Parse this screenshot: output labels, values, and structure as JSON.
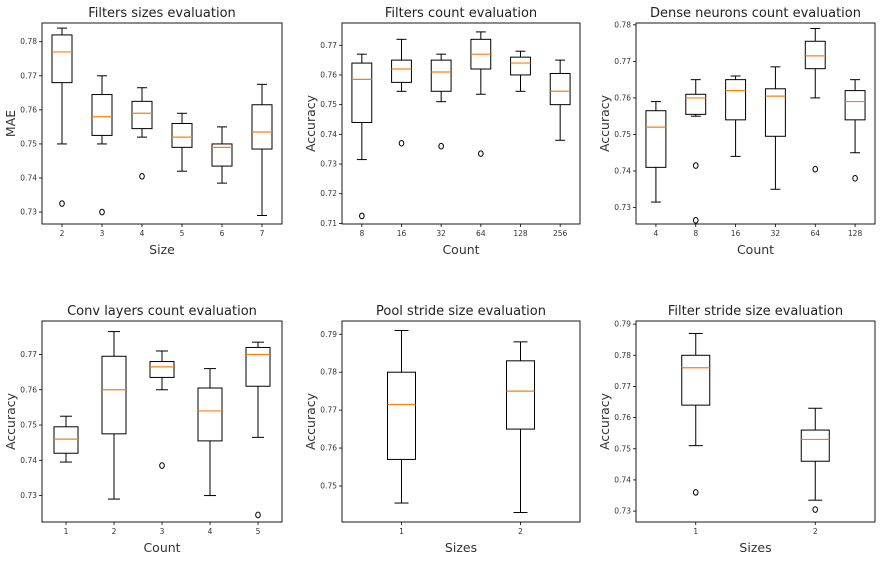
{
  "chart_data": [
    {
      "type": "box",
      "title": "Filters sizes evaluation",
      "xlabel": "Size",
      "ylabel": "MAE",
      "categories": [
        "2",
        "3",
        "4",
        "5",
        "6",
        "7"
      ],
      "ylim": [
        0.7265,
        0.7855
      ],
      "yticks": [
        0.73,
        0.74,
        0.75,
        0.76,
        0.77,
        0.78
      ],
      "boxes": [
        {
          "low": 0.75,
          "q1": 0.768,
          "median": 0.777,
          "q3": 0.782,
          "high": 0.784,
          "outliers": [
            0.7325
          ]
        },
        {
          "low": 0.75,
          "q1": 0.7525,
          "median": 0.758,
          "q3": 0.7645,
          "high": 0.77,
          "outliers": [
            0.73
          ]
        },
        {
          "low": 0.752,
          "q1": 0.7545,
          "median": 0.759,
          "q3": 0.7625,
          "high": 0.7665,
          "outliers": [
            0.7405
          ]
        },
        {
          "low": 0.742,
          "q1": 0.749,
          "median": 0.752,
          "q3": 0.756,
          "high": 0.759,
          "outliers": []
        },
        {
          "low": 0.7385,
          "q1": 0.7435,
          "median": 0.749,
          "q3": 0.75,
          "high": 0.755,
          "outliers": []
        },
        {
          "low": 0.729,
          "q1": 0.7485,
          "median": 0.7535,
          "q3": 0.7615,
          "high": 0.7675,
          "outliers": []
        }
      ]
    },
    {
      "type": "box",
      "title": "Filters count evaluation",
      "xlabel": "Count",
      "ylabel": "Accuracy",
      "categories": [
        "8",
        "16",
        "32",
        "64",
        "128",
        "256"
      ],
      "ylim": [
        0.7098,
        0.7775
      ],
      "yticks": [
        0.71,
        0.72,
        0.73,
        0.74,
        0.75,
        0.76,
        0.77
      ],
      "boxes": [
        {
          "low": 0.7315,
          "q1": 0.744,
          "median": 0.7585,
          "q3": 0.764,
          "high": 0.767,
          "outliers": [
            0.7125
          ]
        },
        {
          "low": 0.7545,
          "q1": 0.7575,
          "median": 0.762,
          "q3": 0.765,
          "high": 0.772,
          "outliers": [
            0.737
          ]
        },
        {
          "low": 0.751,
          "q1": 0.7545,
          "median": 0.761,
          "q3": 0.765,
          "high": 0.767,
          "outliers": [
            0.736
          ]
        },
        {
          "low": 0.7535,
          "q1": 0.762,
          "median": 0.767,
          "q3": 0.772,
          "high": 0.7745,
          "outliers": [
            0.7335
          ]
        },
        {
          "low": 0.7545,
          "q1": 0.76,
          "median": 0.764,
          "q3": 0.766,
          "high": 0.768,
          "outliers": []
        },
        {
          "low": 0.738,
          "q1": 0.75,
          "median": 0.7545,
          "q3": 0.7605,
          "high": 0.765,
          "outliers": []
        }
      ]
    },
    {
      "type": "box",
      "title": "Dense neurons count evaluation",
      "xlabel": "Count",
      "ylabel": "Accuracy",
      "categories": [
        "4",
        "8",
        "16",
        "32",
        "64",
        "128"
      ],
      "ylim": [
        0.7255,
        0.7805
      ],
      "yticks": [
        0.73,
        0.74,
        0.75,
        0.76,
        0.77,
        0.78
      ],
      "boxes": [
        {
          "low": 0.7315,
          "q1": 0.741,
          "median": 0.752,
          "q3": 0.7565,
          "high": 0.759,
          "outliers": []
        },
        {
          "low": 0.755,
          "q1": 0.7555,
          "median": 0.76,
          "q3": 0.761,
          "high": 0.765,
          "outliers": [
            0.7415,
            0.7265
          ]
        },
        {
          "low": 0.744,
          "q1": 0.754,
          "median": 0.762,
          "q3": 0.765,
          "high": 0.766,
          "outliers": []
        },
        {
          "low": 0.735,
          "q1": 0.7495,
          "median": 0.7605,
          "q3": 0.7625,
          "high": 0.7685,
          "outliers": []
        },
        {
          "low": 0.76,
          "q1": 0.768,
          "median": 0.7715,
          "q3": 0.7755,
          "high": 0.779,
          "outliers": [
            0.7405
          ]
        },
        {
          "low": 0.745,
          "q1": 0.754,
          "median": 0.759,
          "q3": 0.762,
          "high": 0.765,
          "outliers": [
            0.738
          ]
        }
      ]
    },
    {
      "type": "box",
      "title": "Conv layers count evaluation",
      "xlabel": "Count",
      "ylabel": "Accuracy",
      "categories": [
        "1",
        "2",
        "3",
        "4",
        "5"
      ],
      "ylim": [
        0.7225,
        0.7795
      ],
      "yticks": [
        0.73,
        0.74,
        0.75,
        0.76,
        0.77
      ],
      "boxes": [
        {
          "low": 0.7395,
          "q1": 0.742,
          "median": 0.746,
          "q3": 0.7495,
          "high": 0.7525,
          "outliers": []
        },
        {
          "low": 0.729,
          "q1": 0.7475,
          "median": 0.76,
          "q3": 0.7695,
          "high": 0.7765,
          "outliers": []
        },
        {
          "low": 0.76,
          "q1": 0.7635,
          "median": 0.7665,
          "q3": 0.768,
          "high": 0.771,
          "outliers": [
            0.7385
          ]
        },
        {
          "low": 0.73,
          "q1": 0.7455,
          "median": 0.754,
          "q3": 0.7605,
          "high": 0.766,
          "outliers": []
        },
        {
          "low": 0.7465,
          "q1": 0.761,
          "median": 0.77,
          "q3": 0.772,
          "high": 0.7735,
          "outliers": [
            0.7245
          ]
        }
      ]
    },
    {
      "type": "box",
      "title": "Pool stride size evaluation",
      "xlabel": "Sizes",
      "ylabel": "Accuracy",
      "categories": [
        "1",
        "2"
      ],
      "ylim": [
        0.7405,
        0.7935
      ],
      "yticks": [
        0.75,
        0.76,
        0.77,
        0.78,
        0.79
      ],
      "boxes": [
        {
          "low": 0.7455,
          "q1": 0.757,
          "median": 0.7715,
          "q3": 0.78,
          "high": 0.791,
          "outliers": []
        },
        {
          "low": 0.743,
          "q1": 0.765,
          "median": 0.775,
          "q3": 0.783,
          "high": 0.788,
          "outliers": []
        }
      ]
    },
    {
      "type": "box",
      "title": "Filter stride size evaluation",
      "xlabel": "Sizes",
      "ylabel": "Accuracy",
      "categories": [
        "1",
        "2"
      ],
      "ylim": [
        0.7265,
        0.791
      ],
      "yticks": [
        0.73,
        0.74,
        0.75,
        0.76,
        0.77,
        0.78,
        0.79
      ],
      "boxes": [
        {
          "low": 0.751,
          "q1": 0.764,
          "median": 0.776,
          "q3": 0.78,
          "high": 0.787,
          "outliers": [
            0.736
          ]
        },
        {
          "low": 0.7335,
          "q1": 0.746,
          "median": 0.753,
          "q3": 0.756,
          "high": 0.763,
          "outliers": [
            0.7305
          ]
        }
      ]
    }
  ],
  "style": {
    "box_color": "#000000",
    "median_color": "#ff7f0e",
    "frame_color": "#000000"
  }
}
